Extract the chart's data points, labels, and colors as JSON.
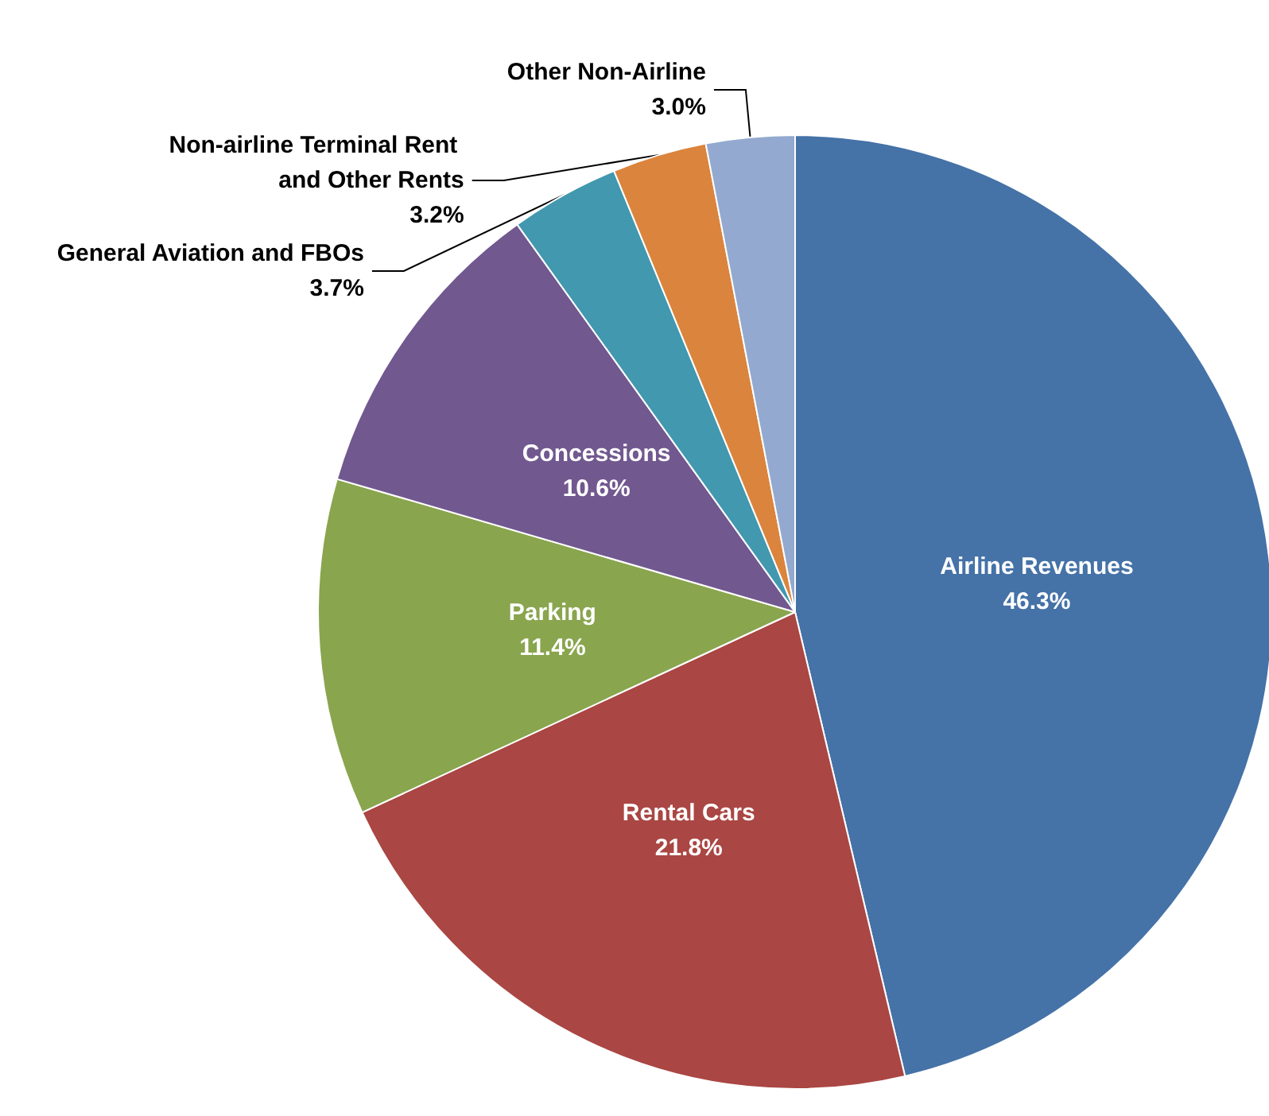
{
  "chart_data": {
    "type": "pie",
    "categories": [
      "Airline Revenues",
      "Rental Cars",
      "Parking",
      "Concessions",
      "General Aviation and FBOs",
      "Non-airline Terminal Rent and Other Rents",
      "Other Non-Airline"
    ],
    "values": [
      46.3,
      21.8,
      11.4,
      10.6,
      3.7,
      3.2,
      3.0
    ],
    "value_labels": [
      "46.3%",
      "21.8%",
      "11.4%",
      "10.6%",
      "3.7%",
      "3.2%",
      "3.0%"
    ],
    "colors": [
      "#4572a7",
      "#aa4643",
      "#89a54e",
      "#71588f",
      "#4198af",
      "#db843d",
      "#93a9cf"
    ],
    "legend": false
  }
}
